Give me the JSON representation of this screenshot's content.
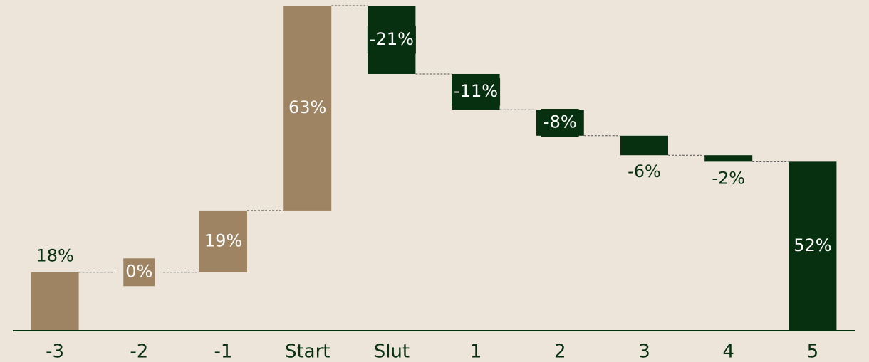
{
  "chart_data": {
    "type": "waterfall",
    "categories": [
      "-3",
      "-2",
      "-1",
      "Start",
      "Slut",
      "1",
      "2",
      "3",
      "4",
      "5"
    ],
    "values": [
      18,
      0,
      19,
      63,
      -21,
      -11,
      -8,
      -6,
      -2,
      52
    ],
    "value_labels": [
      "18%",
      "0%",
      "19%",
      "63%",
      "-21%",
      "-11%",
      "-8%",
      "-6%",
      "-2%",
      "52%"
    ],
    "measure": [
      "relative",
      "relative",
      "relative",
      "relative",
      "relative",
      "relative",
      "relative",
      "relative",
      "relative",
      "total"
    ],
    "label_positions": [
      "outside",
      "inside",
      "inside",
      "inside",
      "inside",
      "inside",
      "inside",
      "outside",
      "outside",
      "inside"
    ],
    "colors": [
      "#9e8463",
      "#9e8463",
      "#9e8463",
      "#9e8463",
      "#06300f",
      "#06300f",
      "#06300f",
      "#06300f",
      "#06300f",
      "#06300f"
    ],
    "ylim": [
      0,
      100
    ]
  }
}
